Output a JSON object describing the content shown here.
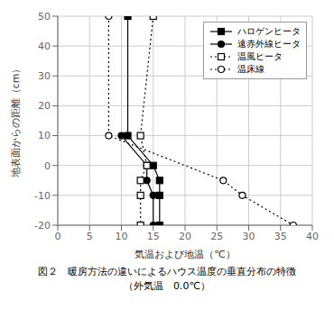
{
  "chart_data": {
    "type": "line",
    "title": "図２　暖房方法の違いによるハウス温度の垂直分布の特徴",
    "subtitle": "（外気温　0.0℃）",
    "xlabel": "気温および地温（℃）",
    "ylabel": "地表面からの距離（cm）",
    "color": "black",
    "xlim": [
      0,
      40
    ],
    "ylim": [
      -20,
      50
    ],
    "xticks": [
      0,
      5,
      10,
      15,
      20,
      25,
      30,
      35,
      40
    ],
    "yticks": [
      -20,
      -10,
      0,
      10,
      20,
      30,
      40,
      50
    ],
    "grid": true,
    "legend": "upper right",
    "series": [
      {
        "name": "ハロゲンヒータ",
        "x": [
          11,
          11,
          15,
          16,
          16,
          16
        ],
        "values": [
          50,
          10,
          0,
          -5,
          -10,
          -20
        ],
        "line_style": "solid",
        "marker": "square"
      },
      {
        "name": "遠赤外線ヒータ",
        "x": [
          10,
          14,
          14,
          15,
          15
        ],
        "values": [
          10,
          0,
          -5,
          -10,
          -20
        ],
        "line_style": "solid",
        "marker": "circle"
      },
      {
        "name": "温風ヒータ",
        "x": [
          15,
          13,
          14,
          13,
          13,
          13
        ],
        "values": [
          50,
          10,
          0,
          -5,
          -10,
          -20
        ],
        "line_style": "dotted",
        "marker": "open-square"
      },
      {
        "name": "温床線",
        "x": [
          8,
          8,
          26,
          29,
          37
        ],
        "values": [
          50,
          10,
          -5,
          -10,
          -20
        ],
        "line_style": "dotted",
        "marker": "open-circle"
      }
    ]
  }
}
